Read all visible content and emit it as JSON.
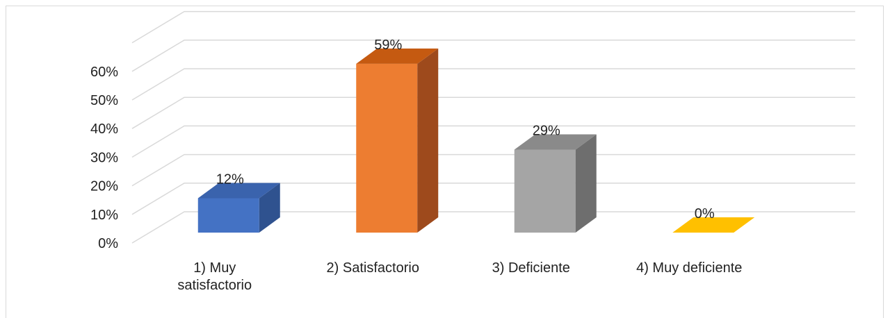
{
  "chart_data": {
    "type": "bar",
    "categories": [
      "1) Muy satisfactorio",
      "2) Satisfactorio",
      "3) Deficiente",
      "4) Muy deficiente"
    ],
    "category_lines": [
      [
        "1) Muy",
        "satisfactorio"
      ],
      [
        "2) Satisfactorio"
      ],
      [
        "3) Deficiente"
      ],
      [
        "4) Muy deficiente"
      ]
    ],
    "values": [
      12,
      59,
      29,
      0
    ],
    "data_labels": [
      "12%",
      "59%",
      "29%",
      "0%"
    ],
    "y_ticks": [
      "0%",
      "10%",
      "20%",
      "30%",
      "40%",
      "50%",
      "60%"
    ],
    "ylim": [
      0,
      70
    ],
    "grid": true,
    "legend": "none",
    "colors": [
      {
        "front": "#4472c4",
        "side": "#2f528f",
        "top": "#3a63ad"
      },
      {
        "front": "#ed7d31",
        "side": "#9e4a1c",
        "top": "#c55a11"
      },
      {
        "front": "#a5a5a5",
        "side": "#6e6e6e",
        "top": "#8a8a8a"
      },
      {
        "front": "#ffc000",
        "side": "#b38600",
        "top": "#c49a00"
      }
    ],
    "grid_color": "#d9d9d9"
  }
}
